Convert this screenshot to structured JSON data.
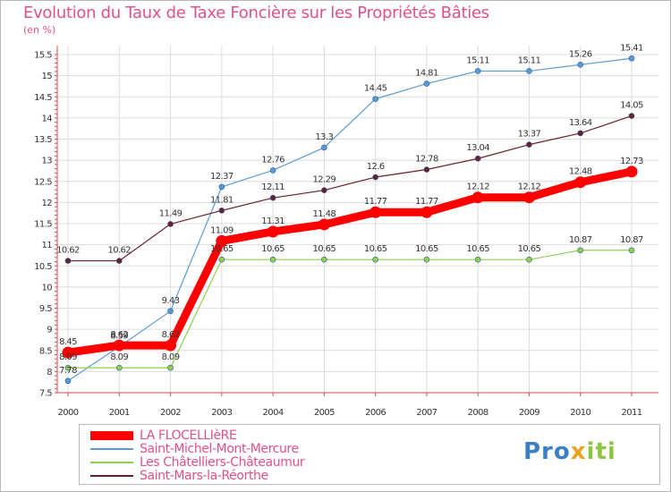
{
  "header": {
    "title": "Evolution du Taux de Taxe Foncière sur les Propriétés Bâties",
    "unit": "(en %)"
  },
  "brand": {
    "part1": "Pro",
    "part2": "x",
    "part3": "iti"
  },
  "colors": {
    "text_accent": "#e0508a",
    "axis": "#e04848",
    "grid": "#dcdcdc"
  },
  "chart_data": {
    "type": "line",
    "title": "Evolution du Taux de Taxe Foncière sur les Propriétés Bâties",
    "ylabel": "(en %)",
    "xlabel": "",
    "x": [
      "2000",
      "2001",
      "2002",
      "2003",
      "2004",
      "2005",
      "2006",
      "2007",
      "2008",
      "2009",
      "2010",
      "2011"
    ],
    "ylim": [
      7.5,
      15.5
    ],
    "yticks": [
      "7.5",
      "8",
      "8.5",
      "9",
      "9.5",
      "10",
      "10.5",
      "11",
      "11.5",
      "12",
      "12.5",
      "13",
      "13.5",
      "14",
      "14.5",
      "15",
      "15.5"
    ],
    "grid": true,
    "legend_position": "bottom",
    "series": [
      {
        "name": "LA FLOCELLIèRE",
        "color": "#ff0000",
        "emphasis": true,
        "values": [
          8.45,
          8.62,
          8.62,
          11.09,
          11.31,
          11.48,
          11.77,
          11.77,
          12.12,
          12.12,
          12.48,
          12.73
        ],
        "labels": [
          "8.45",
          "8.62",
          "8.62",
          "11.09",
          "11.31",
          "11.48",
          "11.77",
          "11.77",
          "12.12",
          "12.12",
          "12.48",
          "12.73"
        ]
      },
      {
        "name": "Saint-Michel-Mont-Mercure",
        "color": "#5b9bd5",
        "emphasis": false,
        "values": [
          7.78,
          8.59,
          9.43,
          12.37,
          12.76,
          13.3,
          14.45,
          14.81,
          15.11,
          15.11,
          15.26,
          15.41
        ],
        "labels": [
          "7.78",
          "8.59",
          "9.43",
          "12.37",
          "12.76",
          "13.3",
          "14.45",
          "14.81",
          "15.11",
          "15.11",
          "15.26",
          "15.41"
        ]
      },
      {
        "name": "Les Châtelliers-Châteaumur",
        "color": "#8fd14f",
        "emphasis": false,
        "values": [
          8.09,
          8.09,
          8.09,
          10.65,
          10.65,
          10.65,
          10.65,
          10.65,
          10.65,
          10.65,
          10.87,
          10.87
        ],
        "labels": [
          "8.09",
          "8.09",
          "8.09",
          "10.65",
          "10.65",
          "10.65",
          "10.65",
          "10.65",
          "10.65",
          "10.65",
          "10.87",
          "10.87"
        ]
      },
      {
        "name": "Saint-Mars-la-Réorthe",
        "color": "#6b1f2a",
        "emphasis": false,
        "values": [
          10.62,
          10.62,
          11.49,
          11.81,
          12.11,
          12.29,
          12.6,
          12.78,
          13.04,
          13.37,
          13.64,
          14.05
        ],
        "labels": [
          "10.62",
          "10.62",
          "11.49",
          "11.81",
          "12.11",
          "12.29",
          "12.6",
          "12.78",
          "13.04",
          "13.37",
          "13.64",
          "14.05"
        ]
      }
    ]
  }
}
